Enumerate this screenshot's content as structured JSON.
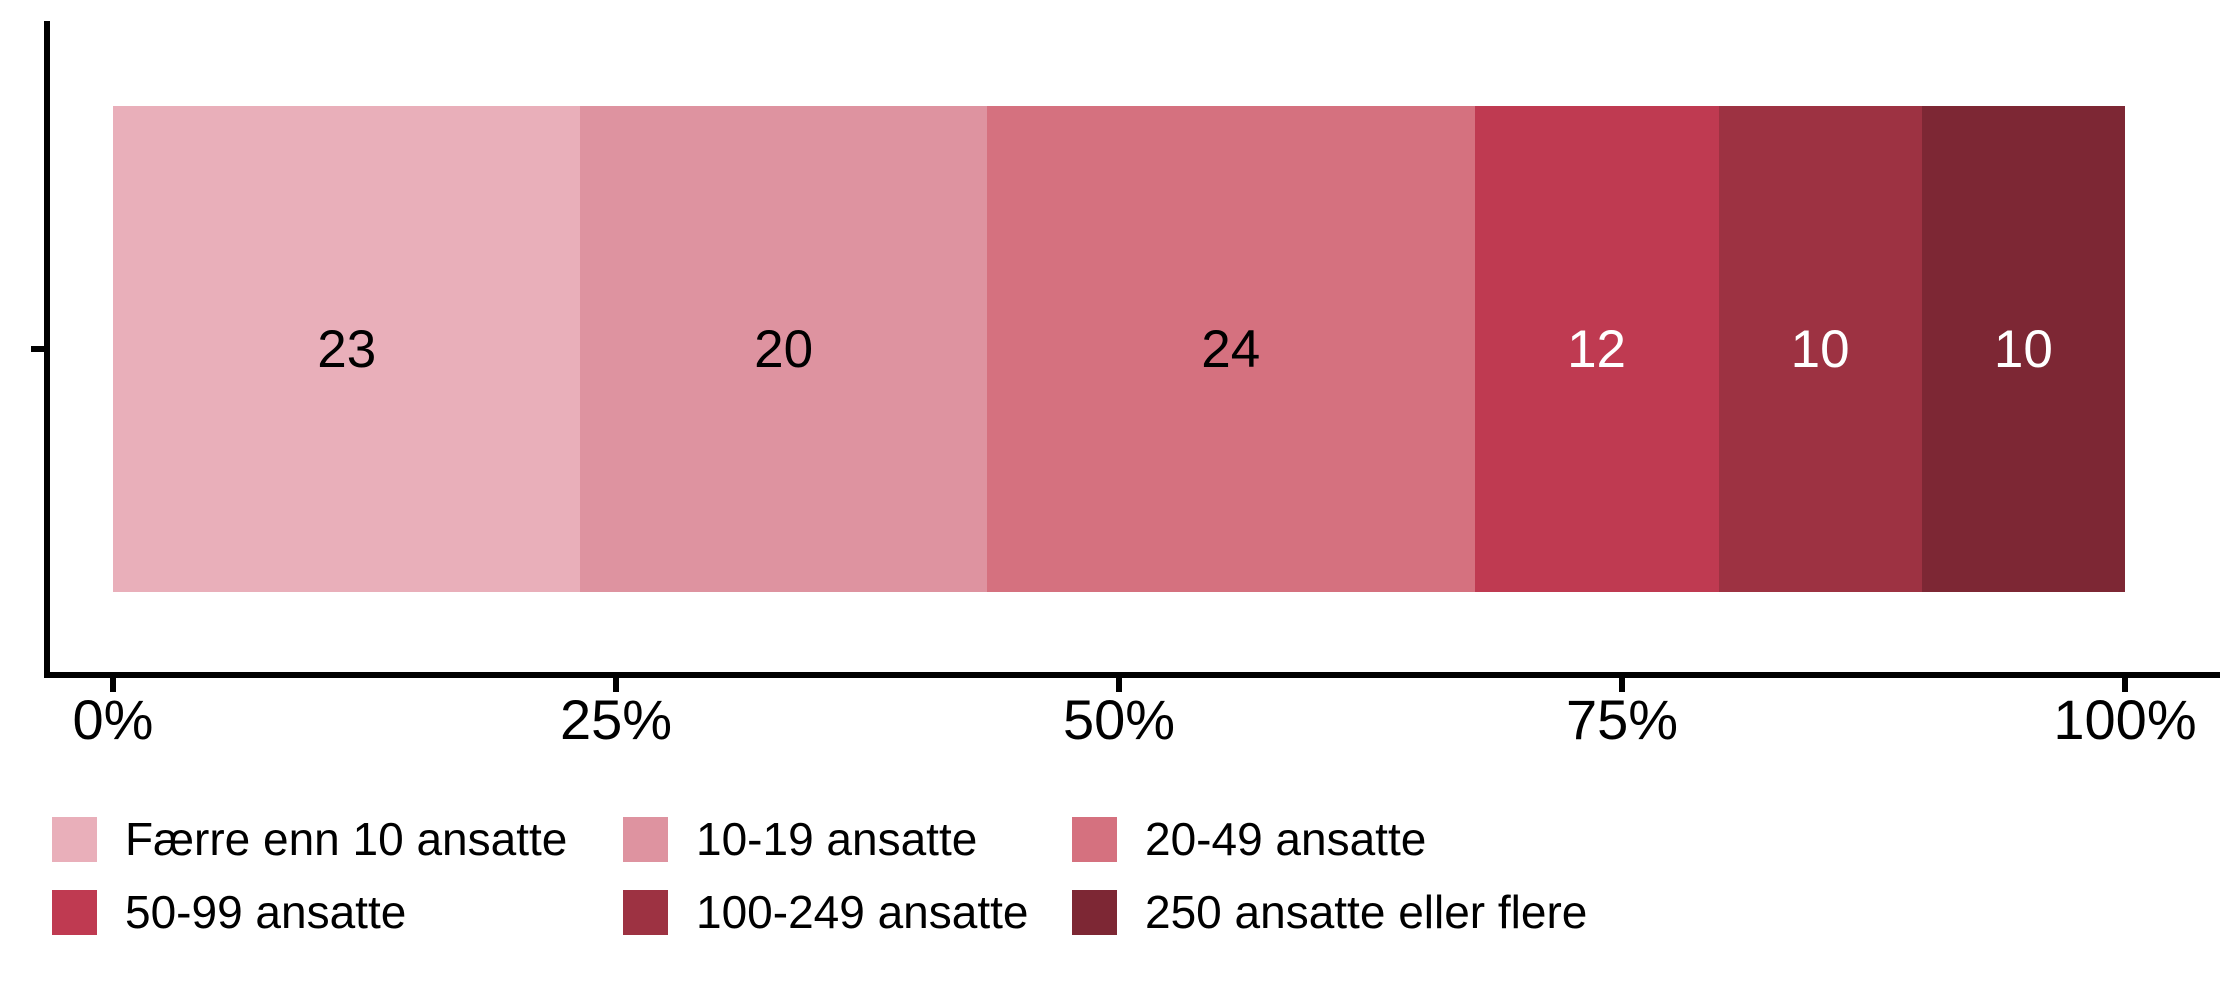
{
  "chart_data": {
    "type": "bar",
    "subtype": "horizontal-stacked-fill",
    "title": "",
    "xlabel": "",
    "ylabel": "",
    "categories": [
      "Færre enn 10 ansatte",
      "10-19 ansatte",
      "20-49 ansatte",
      "50-99 ansatte",
      "100-249 ansatte",
      "250 ansatte eller flere"
    ],
    "values": [
      23,
      20,
      24,
      12,
      10,
      10
    ],
    "value_labels": [
      "23",
      "20",
      "24",
      "12",
      "10",
      "10"
    ],
    "segment_colors": [
      "#E9AFBA",
      "#DE93A0",
      "#D5717F",
      "#BF3A51",
      "#9D3242",
      "#7D2734"
    ],
    "value_label_colors": [
      "#000000",
      "#000000",
      "#000000",
      "#FFFFFF",
      "#FFFFFF",
      "#FFFFFF"
    ],
    "x_axis": {
      "range": [
        0,
        100
      ],
      "tick_positions": [
        0,
        25,
        50,
        75,
        100
      ],
      "tick_labels": [
        "0%",
        "25%",
        "50%",
        "75%",
        "100%"
      ]
    },
    "axis_color": "#000000",
    "grid": false,
    "legend_position": "bottom",
    "legend_rows": 2,
    "legend_columns": 3
  }
}
